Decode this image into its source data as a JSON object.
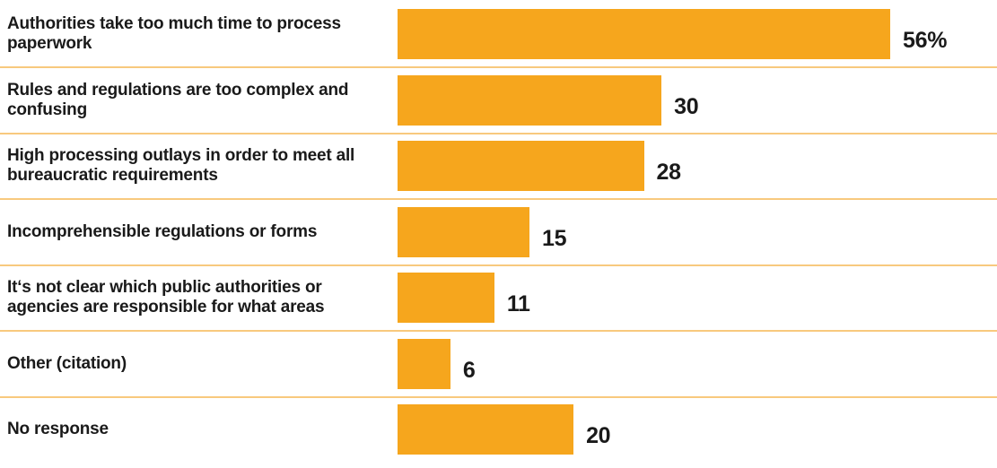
{
  "chart_data": {
    "type": "bar",
    "orientation": "horizontal",
    "categories": [
      "Authorities take too much time to process paperwork",
      "Rules and regulations are too complex and confusing",
      "High processing outlays in order to meet all bureaucratic requirements",
      "Incomprehensible regulations or forms",
      "It‘s not clear which public authorities or agencies are responsible for what areas",
      "Other (citation)",
      "No response"
    ],
    "values": [
      56,
      30,
      28,
      15,
      11,
      6,
      20
    ],
    "value_labels": [
      "56%",
      "30",
      "28",
      "15",
      "11",
      "6",
      "20"
    ],
    "title": "",
    "xlabel": "",
    "ylabel": "",
    "xlim": [
      0,
      56
    ],
    "grid": false,
    "legend": "none",
    "colors": {
      "bar": "#F6A61D",
      "divider": "#F8C97E",
      "text": "#1a1a1a"
    }
  }
}
